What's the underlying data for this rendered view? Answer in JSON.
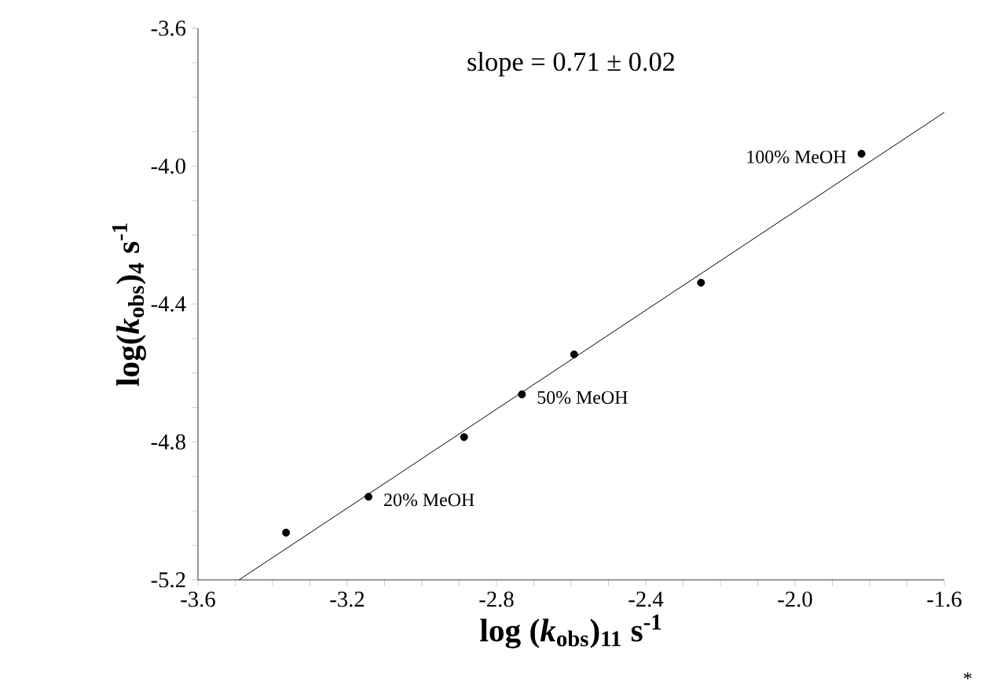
{
  "chart_data": {
    "type": "scatter",
    "xlabel": "log (*k*$_{obs}$)$_{11}$  s$^{-1}$",
    "ylabel": "log(*k*$_{obs}$)$_{4}$  s$^{-1}$",
    "xlim": [
      -3.6,
      -1.6
    ],
    "ylim": [
      -5.2,
      -3.6
    ],
    "xticks": [
      -3.6,
      {
        "value": -3.5,
        "label": null
      },
      {
        "value": -3.4,
        "label": null
      },
      {
        "value": -3.3,
        "label": null
      },
      -3.2,
      {
        "value": -3.1,
        "label": null
      },
      {
        "value": -3.0,
        "label": null
      },
      {
        "value": -2.9,
        "label": null
      },
      -2.8,
      {
        "value": -2.7,
        "label": null
      },
      {
        "value": -2.6,
        "label": null
      },
      {
        "value": -2.5,
        "label": null
      },
      -2.4,
      {
        "value": -2.3,
        "label": null
      },
      {
        "value": -2.2,
        "label": null
      },
      {
        "value": -2.1,
        "label": null
      },
      {
        "value": -2.0,
        "label": "-2.0"
      },
      {
        "value": -1.9,
        "label": null
      },
      {
        "value": -1.8,
        "label": null
      },
      {
        "value": -1.7,
        "label": null
      },
      -1.6
    ],
    "yticks": [
      -3.6,
      {
        "value": -3.7,
        "label": null
      },
      {
        "value": -3.8,
        "label": null
      },
      {
        "value": -3.9,
        "label": null
      },
      {
        "value": -4.0,
        "label": "-4.0"
      },
      {
        "value": -4.1,
        "label": null
      },
      {
        "value": -4.2,
        "label": null
      },
      {
        "value": -4.3,
        "label": null
      },
      -4.4,
      {
        "value": -4.5,
        "label": null
      },
      {
        "value": -4.6,
        "label": null
      },
      {
        "value": -4.7,
        "label": null
      },
      -4.8,
      {
        "value": -4.9,
        "label": null
      },
      {
        "value": -5.0,
        "label": null
      },
      {
        "value": -5.1,
        "label": null
      },
      -5.2
    ],
    "marker": "circle",
    "grid": false,
    "legend": false,
    "series": [
      {
        "color": "#000000",
        "x": [
          -3.364,
          -3.143,
          -2.887,
          -2.732,
          -2.592,
          -2.252,
          -1.822
        ],
        "values": [
          -5.063,
          -4.959,
          -4.786,
          -4.662,
          -4.546,
          -4.338,
          -3.964
        ]
      },
      {
        "type": "line",
        "color": "#000000",
        "marker": "none",
        "x": [
          -3.49,
          -1.6
        ],
        "values": [
          -5.2,
          -3.844
        ]
      }
    ],
    "annotations": [
      "slope = 0.71 ± 0.02",
      "*",
      {
        "text": "20% MeOH",
        "x": -3.143,
        "y": -4.959
      },
      {
        "text": "50% MeOH",
        "x": -2.732,
        "y": -4.662
      },
      {
        "text": "100% MeOH",
        "x": -1.822,
        "y": -3.964
      }
    ]
  }
}
